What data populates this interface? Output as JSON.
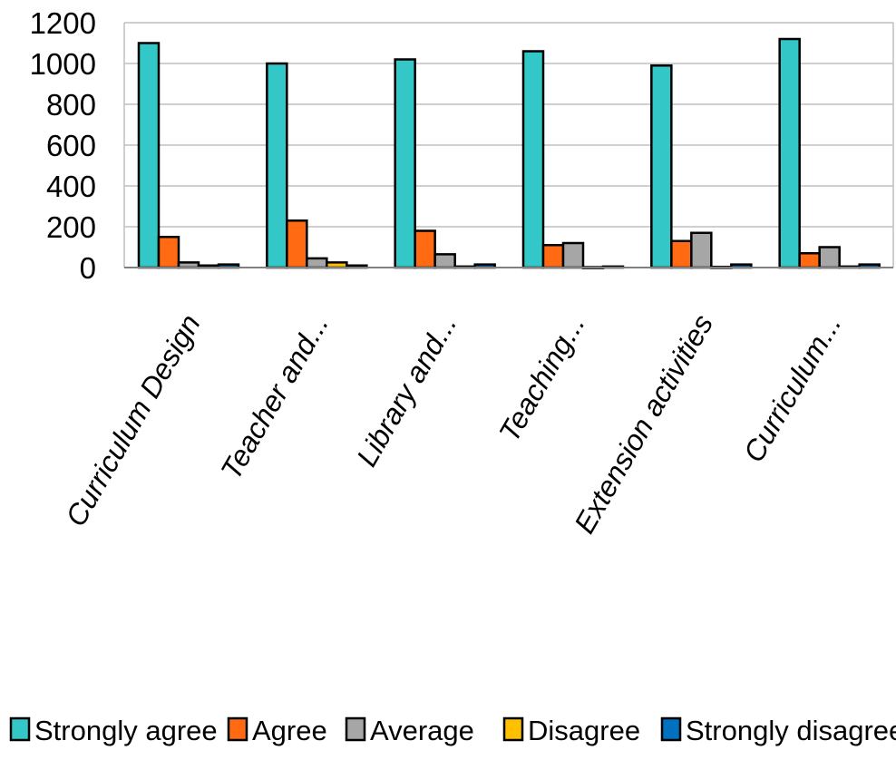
{
  "chart_data": {
    "type": "bar",
    "title": "",
    "xlabel": "",
    "ylabel": "",
    "ylim": [
      0,
      1200
    ],
    "yticks": [
      0,
      200,
      400,
      600,
      800,
      1000,
      1200
    ],
    "grid": true,
    "legend_position": "bottom",
    "categories": [
      "Curriculum Design",
      "Teacher and...",
      "Library and...",
      "Teaching...",
      "Extension activities",
      "Curriculum..."
    ],
    "series": [
      {
        "name": "Strongly agree",
        "color": "#33C7C7",
        "values": [
          1100,
          1000,
          1020,
          1060,
          990,
          1120
        ]
      },
      {
        "name": "Agree",
        "color": "#FF6A13",
        "values": [
          150,
          230,
          180,
          110,
          130,
          70
        ]
      },
      {
        "name": "Average",
        "color": "#A6A6A6",
        "values": [
          25,
          45,
          65,
          120,
          170,
          100
        ]
      },
      {
        "name": "Disagree",
        "color": "#FFC000",
        "values": [
          10,
          25,
          5,
          2,
          3,
          5
        ]
      },
      {
        "name": "Strongly disagree",
        "color": "#0070C0",
        "values": [
          15,
          10,
          15,
          5,
          15,
          15
        ]
      }
    ]
  }
}
